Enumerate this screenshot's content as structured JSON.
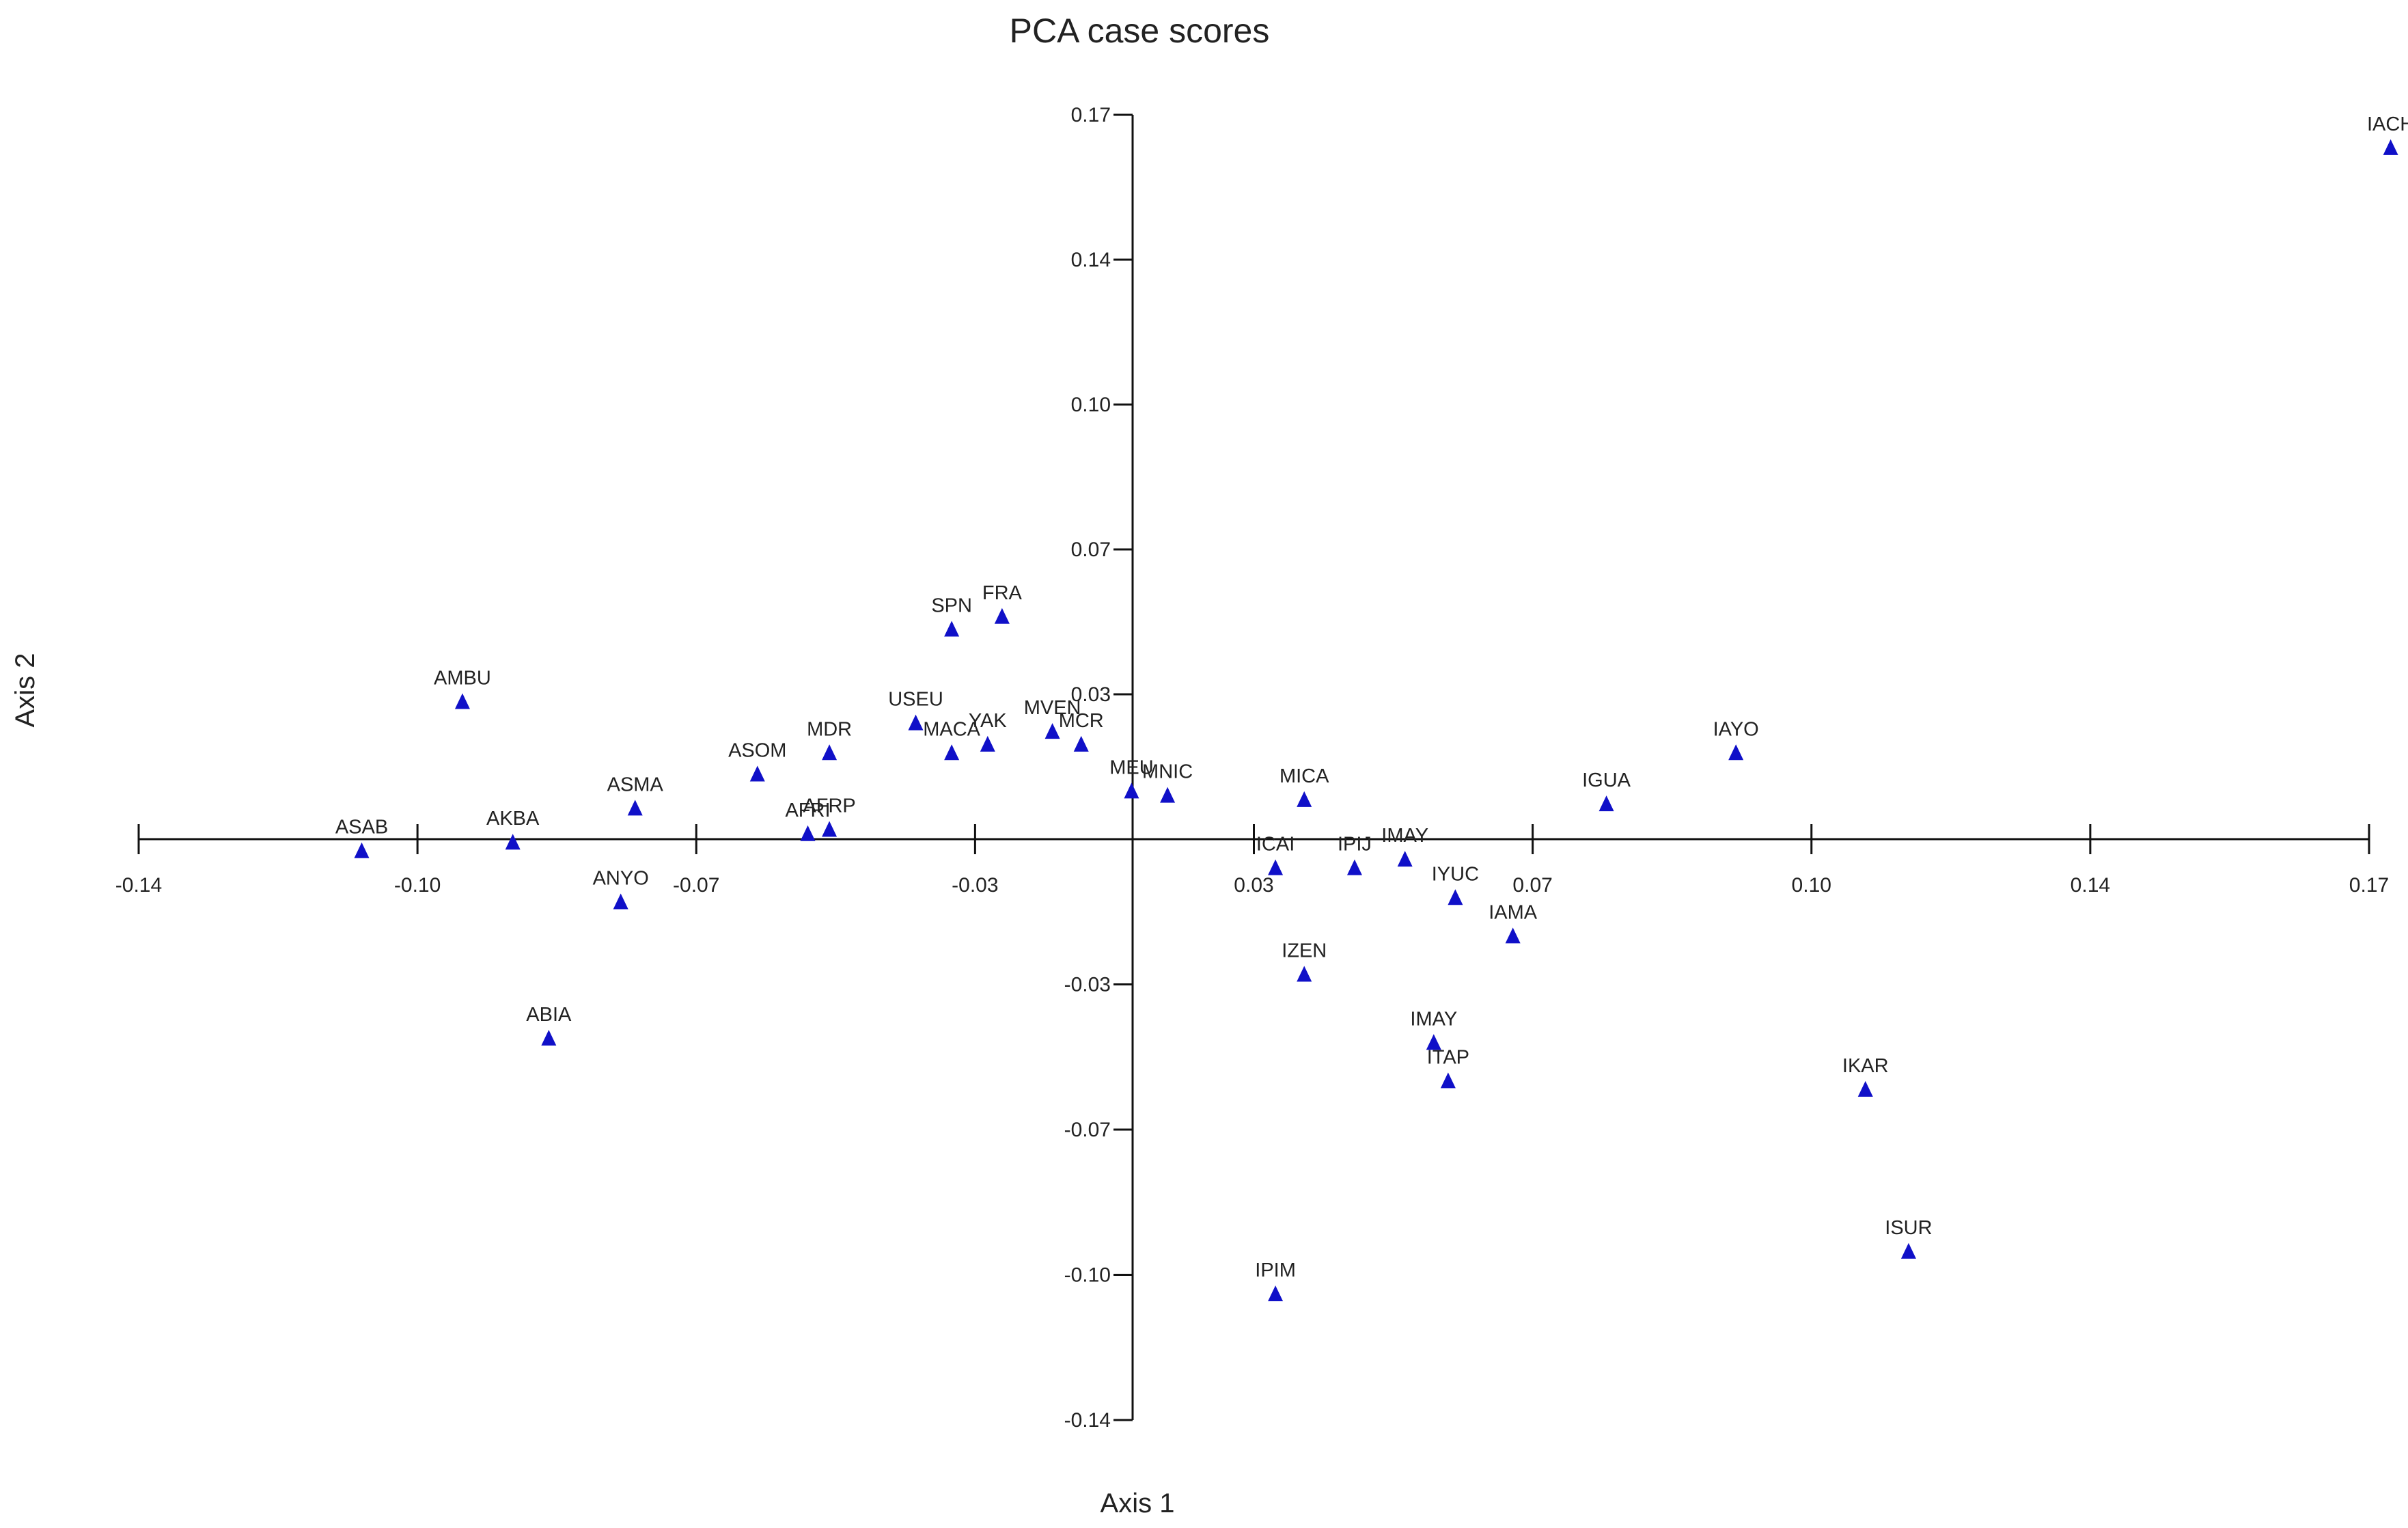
{
  "chart_data": {
    "type": "scatter",
    "title": "PCA case scores",
    "xlabel": "Axis 1",
    "ylabel": "Axis 2",
    "xlim": [
      -0.14,
      0.17
    ],
    "ylim": [
      -0.14,
      0.17
    ],
    "x_ticks": [
      "-0.14",
      "-0.10",
      "-0.07",
      "-0.03",
      "0.03",
      "0.07",
      "0.10",
      "0.14",
      "0.17"
    ],
    "y_ticks": [
      "0.17",
      "0.14",
      "0.10",
      "0.07",
      "0.03",
      "-0.03",
      "-0.07",
      "-0.10",
      "-0.14"
    ],
    "grid": false,
    "marker": "triangle",
    "marker_color": "#1010c8",
    "points": [
      {
        "label": "IACH",
        "x": 0.173,
        "y": 0.162
      },
      {
        "label": "SPN",
        "x": -0.027,
        "y": 0.049
      },
      {
        "label": "FRA",
        "x": -0.02,
        "y": 0.052
      },
      {
        "label": "AMBU",
        "x": -0.095,
        "y": 0.032
      },
      {
        "label": "USEU",
        "x": -0.032,
        "y": 0.027
      },
      {
        "label": "MACA",
        "x": -0.027,
        "y": 0.02
      },
      {
        "label": "YAK",
        "x": -0.022,
        "y": 0.022
      },
      {
        "label": "MVEN",
        "x": -0.013,
        "y": 0.025
      },
      {
        "label": "MCR",
        "x": -0.009,
        "y": 0.022
      },
      {
        "label": "MDR",
        "x": -0.044,
        "y": 0.02
      },
      {
        "label": "ASOM",
        "x": -0.054,
        "y": 0.015
      },
      {
        "label": "MEU",
        "x": -0.002,
        "y": 0.011
      },
      {
        "label": "MNIC",
        "x": 0.003,
        "y": 0.01
      },
      {
        "label": "MICA",
        "x": 0.022,
        "y": 0.009
      },
      {
        "label": "IGUA",
        "x": 0.064,
        "y": 0.008
      },
      {
        "label": "IAYO",
        "x": 0.082,
        "y": 0.02
      },
      {
        "label": "ASMA",
        "x": -0.071,
        "y": 0.007
      },
      {
        "label": "AFRI",
        "x": -0.047,
        "y": 0.001
      },
      {
        "label": "AFRP",
        "x": -0.044,
        "y": 0.002
      },
      {
        "label": "AKBA",
        "x": -0.088,
        "y": -0.001
      },
      {
        "label": "ASAB",
        "x": -0.109,
        "y": -0.003
      },
      {
        "label": "ICAI",
        "x": 0.018,
        "y": -0.007
      },
      {
        "label": "IPIJ",
        "x": 0.029,
        "y": -0.007
      },
      {
        "label": "IMAY",
        "x": 0.036,
        "y": -0.005
      },
      {
        "label": "IYUC",
        "x": 0.043,
        "y": -0.014
      },
      {
        "label": "IAMA",
        "x": 0.051,
        "y": -0.023
      },
      {
        "label": "ANYO",
        "x": -0.073,
        "y": -0.015
      },
      {
        "label": "IZEN",
        "x": 0.022,
        "y": -0.032
      },
      {
        "label": "ABIA",
        "x": -0.083,
        "y": -0.047
      },
      {
        "label": "IMAY",
        "x": 0.04,
        "y": -0.048
      },
      {
        "label": "ITAP",
        "x": 0.042,
        "y": -0.057
      },
      {
        "label": "IKAR",
        "x": 0.1,
        "y": -0.059
      },
      {
        "label": "ISUR",
        "x": 0.106,
        "y": -0.097
      },
      {
        "label": "IPIM",
        "x": 0.018,
        "y": -0.107
      }
    ]
  }
}
